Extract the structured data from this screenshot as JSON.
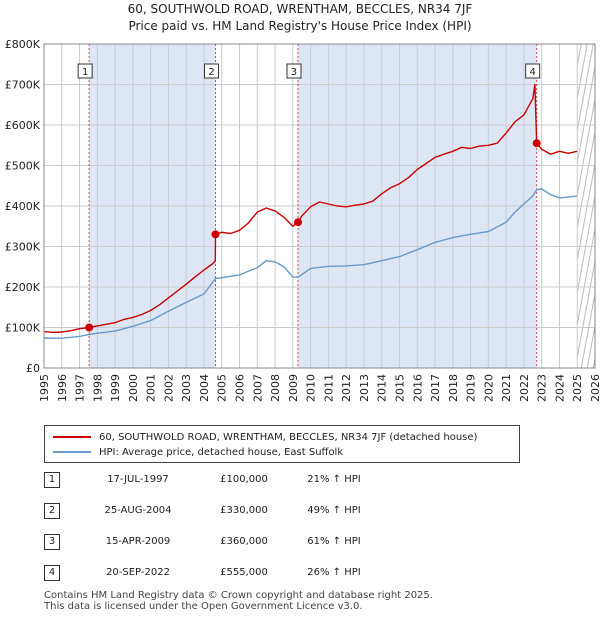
{
  "title_line1": "60, SOUTHWOLD ROAD, WRENTHAM, BECCLES, NR34 7JF",
  "title_line2": "Price paid vs. HM Land Registry's House Price Index (HPI)",
  "legend": {
    "property_label": "60, SOUTHWOLD ROAD, WRENTHAM, BECCLES, NR34 7JF (detached house)",
    "hpi_label": "HPI: Average price, detached house, East Suffolk"
  },
  "colors": {
    "property": "#cc0000",
    "hpi": "#6699cc",
    "shade": "#dde6f5",
    "grid": "#cccccc"
  },
  "transactions": [
    {
      "num": "1",
      "date": "17-JUL-1997",
      "price": "£100,000",
      "hpi": "21% ↑ HPI"
    },
    {
      "num": "2",
      "date": "25-AUG-2004",
      "price": "£330,000",
      "hpi": "49% ↑ HPI"
    },
    {
      "num": "3",
      "date": "15-APR-2009",
      "price": "£360,000",
      "hpi": "61% ↑ HPI"
    },
    {
      "num": "4",
      "date": "20-SEP-2022",
      "price": "£555,000",
      "hpi": "26% ↑ HPI"
    }
  ],
  "footer_line1": "Contains HM Land Registry data © Crown copyright and database right 2025.",
  "footer_line2": "This data is licensed under the Open Government Licence v3.0.",
  "chart_data": {
    "type": "line",
    "xlim": [
      1995,
      2026
    ],
    "ylim": [
      0,
      800000
    ],
    "x_ticks": [
      "1995",
      "1996",
      "1997",
      "1998",
      "1999",
      "2000",
      "2001",
      "2002",
      "2003",
      "2004",
      "2005",
      "2006",
      "2007",
      "2008",
      "2009",
      "2010",
      "2011",
      "2012",
      "2013",
      "2014",
      "2015",
      "2016",
      "2017",
      "2018",
      "2019",
      "2020",
      "2021",
      "2022",
      "2023",
      "2024",
      "2025",
      "2026"
    ],
    "y_ticks": [
      {
        "value": 0,
        "label": "£0"
      },
      {
        "value": 100000,
        "label": "£100K"
      },
      {
        "value": 200000,
        "label": "£200K"
      },
      {
        "value": 300000,
        "label": "£300K"
      },
      {
        "value": 400000,
        "label": "£400K"
      },
      {
        "value": 500000,
        "label": "£500K"
      },
      {
        "value": 600000,
        "label": "£600K"
      },
      {
        "value": 700000,
        "label": "£700K"
      },
      {
        "value": 800000,
        "label": "£800K"
      }
    ],
    "sale_markers": [
      {
        "label": "1",
        "x": 1997.54,
        "y": 100000
      },
      {
        "label": "2",
        "x": 2004.65,
        "y": 330000
      },
      {
        "label": "3",
        "x": 2009.29,
        "y": 360000
      },
      {
        "label": "4",
        "x": 2022.72,
        "y": 555000
      }
    ],
    "series": [
      {
        "name": "60, SOUTHWOLD ROAD, WRENTHAM, BECCLES, NR34 7JF (detached house)",
        "x": [
          1995,
          1995.5,
          1996,
          1996.5,
          1997,
          1997.54,
          1998,
          1998.5,
          1999,
          1999.5,
          2000,
          2000.5,
          2001,
          2001.5,
          2002,
          2002.5,
          2003,
          2003.5,
          2004,
          2004.5,
          2004.64,
          2004.65,
          2005,
          2005.5,
          2006,
          2006.5,
          2007,
          2007.5,
          2008,
          2008.5,
          2009,
          2009.29,
          2009.5,
          2010,
          2010.5,
          2011,
          2011.5,
          2012,
          2012.5,
          2013,
          2013.5,
          2014,
          2014.5,
          2015,
          2015.5,
          2016,
          2016.5,
          2017,
          2017.5,
          2018,
          2018.5,
          2019,
          2019.5,
          2020,
          2020.5,
          2021,
          2021.5,
          2022,
          2022.5,
          2022.62,
          2022.72,
          2023,
          2023.5,
          2024,
          2024.5,
          2025
        ],
        "values": [
          90000,
          88000,
          89000,
          92000,
          97000,
          100000,
          104000,
          108000,
          112000,
          120000,
          125000,
          132000,
          142000,
          156000,
          173000,
          190000,
          207000,
          225000,
          242000,
          258000,
          265000,
          330000,
          335000,
          332000,
          340000,
          358000,
          385000,
          395000,
          388000,
          372000,
          350000,
          360000,
          375000,
          398000,
          410000,
          405000,
          400000,
          398000,
          402000,
          405000,
          412000,
          430000,
          445000,
          455000,
          470000,
          490000,
          505000,
          520000,
          528000,
          535000,
          545000,
          542000,
          548000,
          550000,
          555000,
          580000,
          608000,
          625000,
          665000,
          700000,
          555000,
          540000,
          528000,
          535000,
          530000,
          535000
        ]
      },
      {
        "name": "HPI: Average price, detached house, East Suffolk",
        "x": [
          1995,
          1996,
          1997,
          1997.54,
          1998,
          1999,
          2000,
          2001,
          2002,
          2003,
          2004,
          2004.65,
          2005,
          2006,
          2007,
          2007.5,
          2008,
          2008.5,
          2009,
          2009.29,
          2010,
          2011,
          2012,
          2013,
          2014,
          2015,
          2016,
          2017,
          2018,
          2019,
          2020,
          2021,
          2021.5,
          2022,
          2022.5,
          2022.72,
          2023,
          2023.5,
          2024,
          2024.5,
          2025
        ],
        "values": [
          74000,
          73500,
          78000,
          82600,
          86000,
          91000,
          103000,
          117000,
          140000,
          162000,
          183000,
          221000,
          223000,
          230000,
          248000,
          265000,
          262000,
          250000,
          225000,
          224000,
          246000,
          251000,
          252000,
          255000,
          265000,
          275000,
          292000,
          310000,
          322000,
          330000,
          337000,
          360000,
          385000,
          405000,
          425000,
          440000,
          442000,
          428000,
          420000,
          422000,
          425000
        ]
      }
    ]
  }
}
